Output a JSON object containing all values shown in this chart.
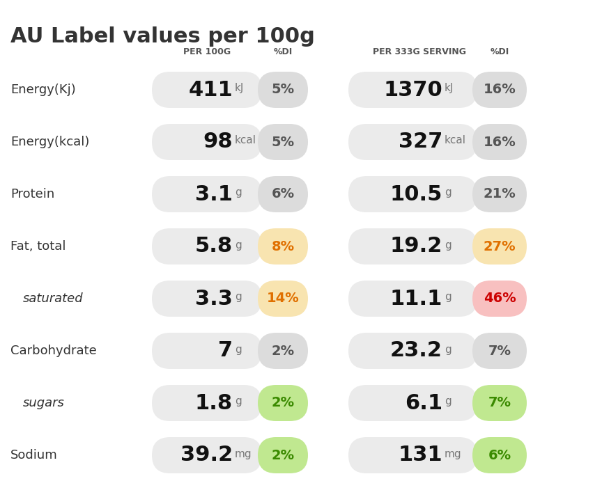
{
  "title": "AU Label values per 100g",
  "col_headers": [
    "PER 100G",
    "%DI",
    "PER 333G SERVING",
    "%DI"
  ],
  "rows": [
    {
      "label": "Energy(Kj)",
      "italic": false,
      "val100": "411",
      "unit100": "kJ",
      "pdi100": "5%",
      "pdi100_color": "#dcdcdc",
      "pdi100_text_color": "#555555",
      "val333": "1370",
      "unit333": "kJ",
      "pdi333": "16%",
      "pdi333_color": "#dcdcdc",
      "pdi333_text_color": "#555555"
    },
    {
      "label": "Energy(kcal)",
      "italic": false,
      "val100": "98",
      "unit100": "kcal",
      "pdi100": "5%",
      "pdi100_color": "#dcdcdc",
      "pdi100_text_color": "#555555",
      "val333": "327",
      "unit333": "kcal",
      "pdi333": "16%",
      "pdi333_color": "#dcdcdc",
      "pdi333_text_color": "#555555"
    },
    {
      "label": "Protein",
      "italic": false,
      "val100": "3.1",
      "unit100": "g",
      "pdi100": "6%",
      "pdi100_color": "#dcdcdc",
      "pdi100_text_color": "#555555",
      "val333": "10.5",
      "unit333": "g",
      "pdi333": "21%",
      "pdi333_color": "#dcdcdc",
      "pdi333_text_color": "#555555"
    },
    {
      "label": "Fat, total",
      "italic": false,
      "val100": "5.8",
      "unit100": "g",
      "pdi100": "8%",
      "pdi100_color": "#f8e4b0",
      "pdi100_text_color": "#e07000",
      "val333": "19.2",
      "unit333": "g",
      "pdi333": "27%",
      "pdi333_color": "#f8e4b0",
      "pdi333_text_color": "#e07000"
    },
    {
      "label": "saturated",
      "italic": true,
      "val100": "3.3",
      "unit100": "g",
      "pdi100": "14%",
      "pdi100_color": "#f8e4b0",
      "pdi100_text_color": "#e07000",
      "val333": "11.1",
      "unit333": "g",
      "pdi333": "46%",
      "pdi333_color": "#f8c0c0",
      "pdi333_text_color": "#cc0000"
    },
    {
      "label": "Carbohydrate",
      "italic": false,
      "val100": "7",
      "unit100": "g",
      "pdi100": "2%",
      "pdi100_color": "#dcdcdc",
      "pdi100_text_color": "#555555",
      "val333": "23.2",
      "unit333": "g",
      "pdi333": "7%",
      "pdi333_color": "#dcdcdc",
      "pdi333_text_color": "#555555"
    },
    {
      "label": "sugars",
      "italic": true,
      "val100": "1.8",
      "unit100": "g",
      "pdi100": "2%",
      "pdi100_color": "#c0e890",
      "pdi100_text_color": "#3a8a00",
      "val333": "6.1",
      "unit333": "g",
      "pdi333": "7%",
      "pdi333_color": "#c0e890",
      "pdi333_text_color": "#3a8a00"
    },
    {
      "label": "Sodium",
      "italic": false,
      "val100": "39.2",
      "unit100": "mg",
      "pdi100": "2%",
      "pdi100_color": "#c0e890",
      "pdi100_text_color": "#3a8a00",
      "val333": "131",
      "unit333": "mg",
      "pdi333": "6%",
      "pdi333_color": "#c0e890",
      "pdi333_text_color": "#3a8a00"
    }
  ],
  "bg_color": "#ffffff",
  "val_pill_color": "#ebebeb",
  "title_fontsize": 22,
  "header_fontsize": 9,
  "label_fontsize": 13,
  "value_fontsize": 22,
  "unit_fontsize": 11,
  "pdi_fontsize": 14,
  "label_color": "#333333",
  "header_color": "#555555"
}
